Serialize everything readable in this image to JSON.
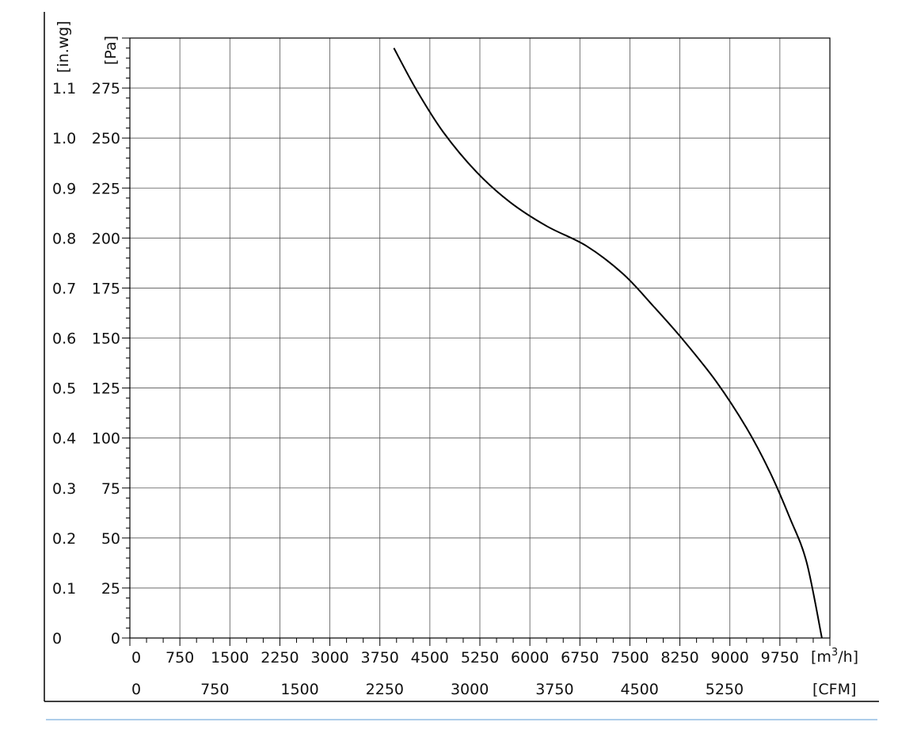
{
  "chart_data": {
    "type": "line",
    "title": "",
    "xlabel": "",
    "ylabel": "",
    "x_unit": "m³/h",
    "x_unit_display": {
      "base": "[m",
      "sup": "3",
      "tail": "/h]"
    },
    "x2_unit": "[CFM]",
    "y_unit": "[Pa]",
    "y2_unit": "[in.wg]",
    "xlim": [
      0,
      10500
    ],
    "ylim": [
      0,
      300
    ],
    "grid": true,
    "x_ticks": [
      "0",
      "750",
      "1500",
      "2250",
      "3000",
      "3750",
      "4500",
      "5250",
      "6000",
      "6750",
      "7500",
      "8250",
      "9000",
      "9750"
    ],
    "x2_ticks": [
      "0",
      "750",
      "1500",
      "2250",
      "3000",
      "3750",
      "4500",
      "5250"
    ],
    "y_ticks": [
      "0",
      "25",
      "50",
      "75",
      "100",
      "125",
      "150",
      "175",
      "200",
      "225",
      "250",
      "275"
    ],
    "y2_ticks": [
      "0",
      "0.1",
      "0.2",
      "0.3",
      "0.4",
      "0.5",
      "0.6",
      "0.7",
      "0.8",
      "0.9",
      "1.0",
      "1.1"
    ],
    "series": [
      {
        "x": [
          3960,
          4300,
          4700,
          5200,
          5700,
          6250,
          6850,
          7400,
          7850,
          8300,
          8800,
          9250,
          9600,
          9900,
          10150,
          10380
        ],
        "y": [
          295,
          274,
          253,
          233,
          218,
          206,
          196,
          182,
          166,
          149,
          128,
          105,
          83,
          60,
          38,
          0
        ]
      }
    ]
  },
  "colors": {
    "curve": "#000000",
    "grid": "#555555",
    "axis": "#000000",
    "footer_rule": "#5b9bd5"
  }
}
